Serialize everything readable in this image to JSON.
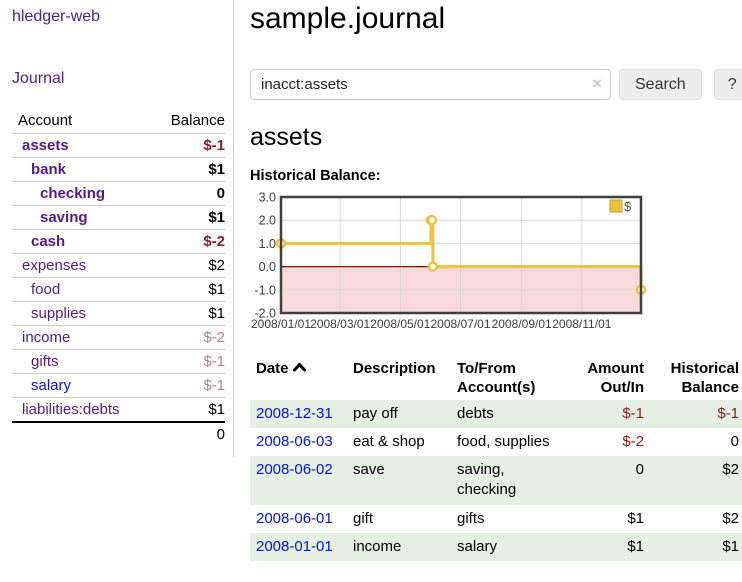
{
  "app": {
    "title": "hledger-web"
  },
  "colors": {
    "link_purple": "#551a8b",
    "link_blue": "#0011ee",
    "negative": "#8b1d1d",
    "negative_dim": "#bf8080",
    "row_green": "#e4f0e2",
    "series_gold": "#edc240"
  },
  "sidebar": {
    "journal_link": "Journal",
    "accounts": {
      "header_account": "Account",
      "header_balance": "Balance",
      "rows": [
        {
          "label": "assets",
          "balance": "$-1",
          "indent": 1,
          "bold": true,
          "label_color": "purple",
          "balance_color": "negative"
        },
        {
          "label": "bank",
          "balance": "$1",
          "indent": 2,
          "bold": true,
          "label_color": "purple",
          "balance_color": "plain"
        },
        {
          "label": "checking",
          "balance": "0",
          "indent": 3,
          "bold": true,
          "label_color": "purple",
          "balance_color": "plain"
        },
        {
          "label": "saving",
          "balance": "$1",
          "indent": 3,
          "bold": true,
          "label_color": "purple",
          "balance_color": "plain"
        },
        {
          "label": "cash",
          "balance": "$-2",
          "indent": 2,
          "bold": true,
          "label_color": "purple",
          "balance_color": "negative"
        },
        {
          "label": "expenses",
          "balance": "$2",
          "indent": 1,
          "bold": false,
          "label_color": "purple",
          "balance_color": "plain"
        },
        {
          "label": "food",
          "balance": "$1",
          "indent": 2,
          "bold": false,
          "label_color": "purple",
          "balance_color": "plain"
        },
        {
          "label": "supplies",
          "balance": "$1",
          "indent": 2,
          "bold": false,
          "label_color": "purple",
          "balance_color": "plain"
        },
        {
          "label": "income",
          "balance": "$-2",
          "indent": 1,
          "bold": false,
          "label_color": "purple",
          "balance_color": "negative_dim"
        },
        {
          "label": "gifts",
          "balance": "$-1",
          "indent": 2,
          "bold": false,
          "label_color": "purple",
          "balance_color": "negative_dim"
        },
        {
          "label": "salary",
          "balance": "$-1",
          "indent": 2,
          "bold": false,
          "label_color": "blue",
          "balance_color": "negative_dim"
        },
        {
          "label": "liabilities:debts",
          "balance": "$1",
          "indent": 1,
          "bold": false,
          "label_color": "purple",
          "balance_color": "plain"
        }
      ],
      "total": "0"
    }
  },
  "main": {
    "title": "sample.journal",
    "search": {
      "value": "inacct:assets",
      "clear_icon": "×",
      "button_label": "Search",
      "help_label": "?"
    },
    "account_heading": "assets"
  },
  "chart_data": {
    "type": "line",
    "step": true,
    "title": "Historical Balance:",
    "legend": {
      "label": "$",
      "position": "top-right"
    },
    "series": [
      {
        "name": "$",
        "color": "#edc240",
        "points": [
          [
            "2008-01-01",
            1
          ],
          [
            "2008-06-01",
            2
          ],
          [
            "2008-06-02",
            2
          ],
          [
            "2008-06-03",
            0
          ],
          [
            "2008-12-31",
            -1
          ]
        ]
      }
    ],
    "xlim": [
      "2008-01-01",
      "2008-12-31"
    ],
    "ylim": [
      -2,
      3
    ],
    "y_ticks": [
      {
        "value": 3,
        "label": "3.0"
      },
      {
        "value": 2,
        "label": "2.0"
      },
      {
        "value": 1,
        "label": "1.0"
      },
      {
        "value": 0,
        "label": "0.0"
      },
      {
        "value": -1,
        "label": "-1.0"
      },
      {
        "value": -2,
        "label": "-2.0"
      }
    ],
    "x_ticks": [
      {
        "date": "2008-01-01",
        "label": "2008/01/01"
      },
      {
        "date": "2008-03-01",
        "label": "2008/03/01"
      },
      {
        "date": "2008-05-01",
        "label": "2008/05/01"
      },
      {
        "date": "2008-07-01",
        "label": "2008/07/01"
      },
      {
        "date": "2008-09-01",
        "label": "2008/09/01"
      },
      {
        "date": "2008-11-01",
        "label": "2008/11/01"
      }
    ],
    "grid": true,
    "zero_line_color": "#8b0000",
    "negative_region_color": "#f9dada",
    "border_color": "#3f3f3f"
  },
  "register": {
    "sort_icon": "chevron-up",
    "columns": [
      {
        "line1": "Date",
        "line2": "",
        "align": "left",
        "sorted": true
      },
      {
        "line1": "Description",
        "line2": "",
        "align": "left",
        "sorted": false
      },
      {
        "line1": "To/From",
        "line2": "Account(s)",
        "align": "left",
        "sorted": false
      },
      {
        "line1": "Amount",
        "line2": "Out/In",
        "align": "right",
        "sorted": false
      },
      {
        "line1": "Historical",
        "line2": "Balance",
        "align": "right",
        "sorted": false
      }
    ],
    "rows": [
      {
        "date": "2008-12-31",
        "description": "pay off",
        "accounts": "debts",
        "amount": "$-1",
        "amount_negative": true,
        "balance": "$-1",
        "balance_negative": true
      },
      {
        "date": "2008-06-03",
        "description": "eat & shop",
        "accounts": "food, supplies",
        "amount": "$-2",
        "amount_negative": true,
        "balance": "0",
        "balance_negative": false
      },
      {
        "date": "2008-06-02",
        "description": "save",
        "accounts": "saving, checking",
        "amount": "0",
        "amount_negative": false,
        "balance": "$2",
        "balance_negative": false
      },
      {
        "date": "2008-06-01",
        "description": "gift",
        "accounts": "gifts",
        "amount": "$1",
        "amount_negative": false,
        "balance": "$2",
        "balance_negative": false
      },
      {
        "date": "2008-01-01",
        "description": "income",
        "accounts": "salary",
        "amount": "$1",
        "amount_negative": false,
        "balance": "$1",
        "balance_negative": false
      }
    ]
  }
}
